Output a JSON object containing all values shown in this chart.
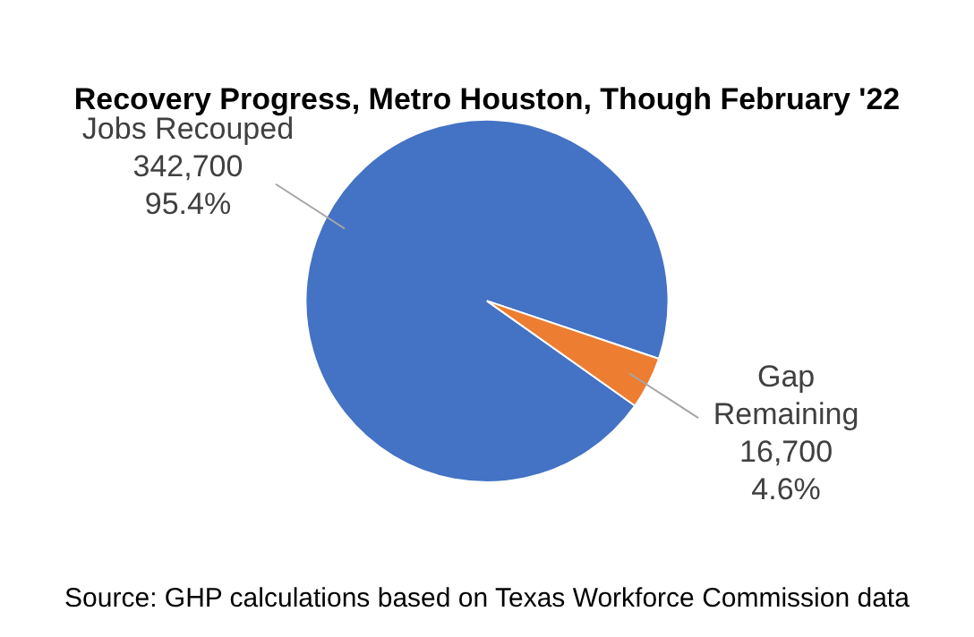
{
  "chart_data": {
    "type": "pie",
    "title": "Recovery Progress, Metro Houston, Though February '22",
    "categories": [
      "Jobs Recouped",
      "Gap Remaining"
    ],
    "values": [
      342700,
      16700
    ],
    "colors": [
      "#4472c4",
      "#ed7d31"
    ],
    "value_labels": [
      "342,700\n95.4%",
      "16,700\n4.6%"
    ],
    "annotations": [
      "Source: GHP calculations based on Texas Workforce Commission data"
    ]
  }
}
